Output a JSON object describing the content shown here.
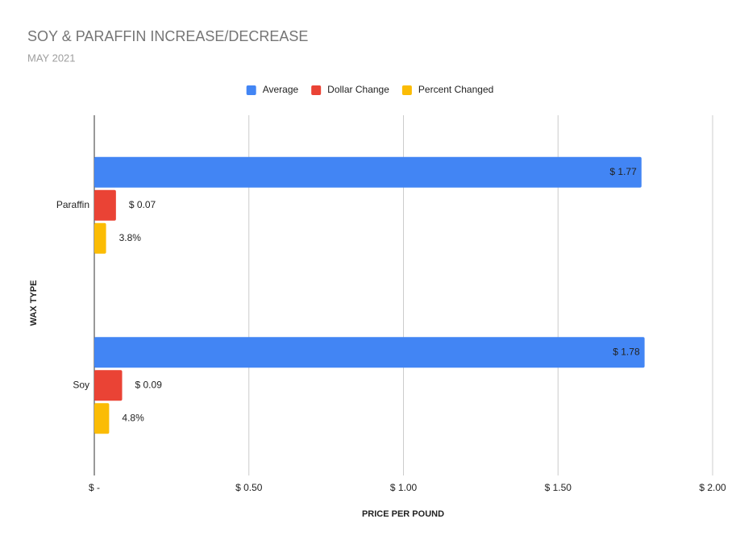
{
  "chart_data": {
    "type": "bar",
    "orientation": "horizontal",
    "title": "SOY & PARAFFIN INCREASE/DECREASE",
    "subtitle": "MAY 2021",
    "x_label": "PRICE PER POUND",
    "y_label": "WAX TYPE",
    "categories": [
      "Paraffin",
      "Soy"
    ],
    "series": [
      {
        "name": "Average",
        "color": "#4285f4",
        "values": [
          1.77,
          1.78
        ],
        "value_labels": [
          "$ 1.77",
          "$ 1.78"
        ]
      },
      {
        "name": "Dollar Change",
        "color": "#ea4335",
        "values": [
          0.07,
          0.09
        ],
        "value_labels": [
          "$ 0.07",
          "$ 0.09"
        ]
      },
      {
        "name": "Percent Changed",
        "color": "#fbbc04",
        "values": [
          0.038,
          0.048
        ],
        "value_labels": [
          "3.8%",
          "4.8%"
        ]
      }
    ],
    "xlim": [
      0,
      2
    ],
    "xticks": [
      {
        "value": 0,
        "label": "$ -"
      },
      {
        "value": 0.5,
        "label": "$ 0.50"
      },
      {
        "value": 1,
        "label": "$ 1.00"
      },
      {
        "value": 1.5,
        "label": "$ 1.50"
      },
      {
        "value": 2,
        "label": "$ 2.00"
      }
    ],
    "grid": true,
    "legend": "top"
  }
}
